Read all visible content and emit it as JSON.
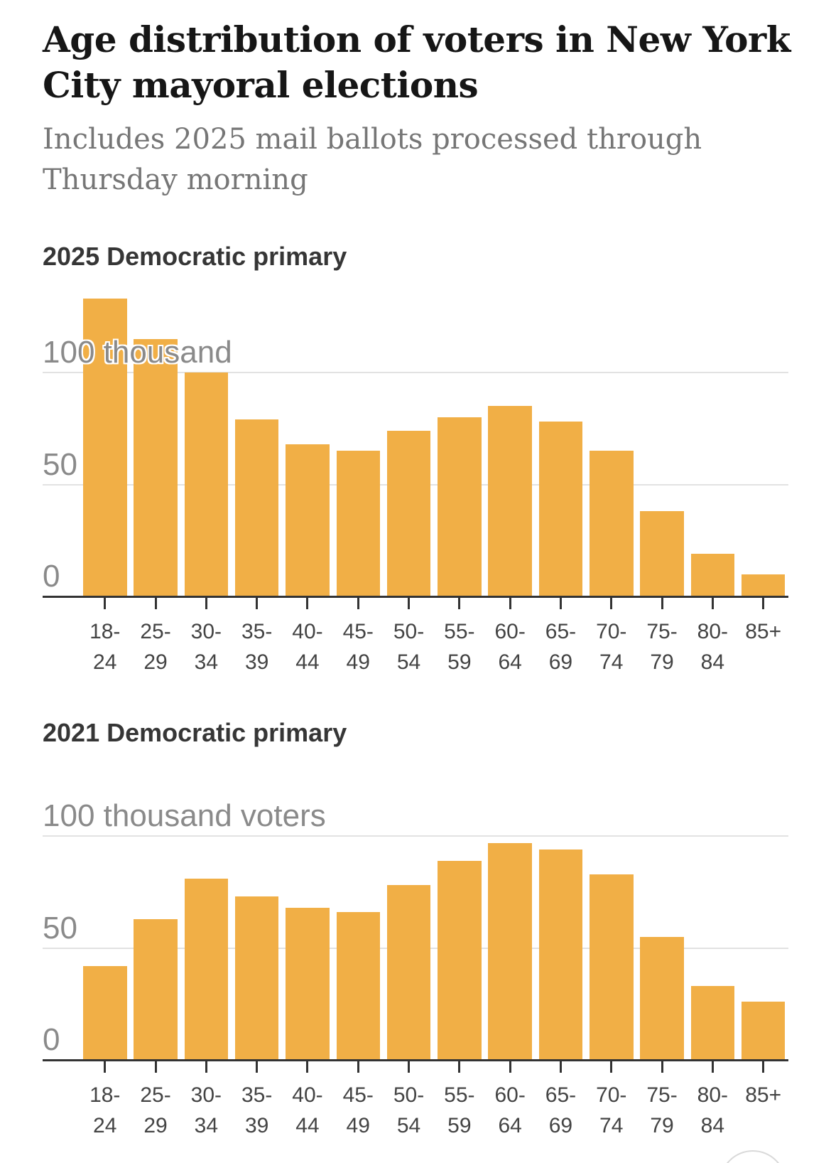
{
  "header": {
    "title_lines": [
      "Age distribution of voters in New York",
      "City mayoral elections"
    ],
    "subtitle_lines": [
      "Includes 2025 mail ballots processed through",
      "Thursday morning"
    ]
  },
  "colors": {
    "bar": "#F1AF46",
    "axis": "#333333",
    "gridline": "#E2E2E2",
    "title": "#161616",
    "subtitle": "#767676",
    "section_title": "#363636",
    "x_label": "#444444",
    "y_label": "#8A8A8A",
    "floating_button_border": "#D9D9D9"
  },
  "chart_data": [
    {
      "type": "bar",
      "title": "2025 Democratic primary",
      "ylabel": "thousand voters",
      "ylim": [
        0,
        140
      ],
      "grid": "horizontal",
      "gridlines": [
        50,
        100
      ],
      "y_axis_labels": [
        {
          "value": 0,
          "label": "0"
        },
        {
          "value": 50,
          "label": "50"
        },
        {
          "value": 100,
          "label": "100 thousand"
        }
      ],
      "categories": [
        [
          "18-",
          "24"
        ],
        [
          "25-",
          "29"
        ],
        [
          "30-",
          "34"
        ],
        [
          "35-",
          "39"
        ],
        [
          "40-",
          "44"
        ],
        [
          "45-",
          "49"
        ],
        [
          "50-",
          "54"
        ],
        [
          "55-",
          "59"
        ],
        [
          "60-",
          "64"
        ],
        [
          "65-",
          "69"
        ],
        [
          "70-",
          "74"
        ],
        [
          "75-",
          "79"
        ],
        [
          "80-",
          "84"
        ],
        [
          "85+",
          ""
        ]
      ],
      "values": [
        133,
        115,
        100,
        79,
        68,
        65,
        74,
        80,
        85,
        78,
        65,
        38,
        19,
        10
      ]
    },
    {
      "type": "bar",
      "title": "2021 Democratic primary",
      "ylabel": "thousand voters",
      "ylim": [
        0,
        110
      ],
      "grid": "horizontal",
      "gridlines": [
        50,
        100
      ],
      "y_axis_labels": [
        {
          "value": 0,
          "label": "0"
        },
        {
          "value": 50,
          "label": "50"
        },
        {
          "value": 100,
          "label": "100 thousand voters"
        }
      ],
      "categories": [
        [
          "18-",
          "24"
        ],
        [
          "25-",
          "29"
        ],
        [
          "30-",
          "34"
        ],
        [
          "35-",
          "39"
        ],
        [
          "40-",
          "44"
        ],
        [
          "45-",
          "49"
        ],
        [
          "50-",
          "54"
        ],
        [
          "55-",
          "59"
        ],
        [
          "60-",
          "64"
        ],
        [
          "65-",
          "69"
        ],
        [
          "70-",
          "74"
        ],
        [
          "75-",
          "79"
        ],
        [
          "80-",
          "84"
        ],
        [
          "85+",
          ""
        ]
      ],
      "values": [
        42,
        63,
        81,
        73,
        68,
        66,
        78,
        89,
        97,
        94,
        83,
        55,
        33,
        26
      ]
    }
  ]
}
